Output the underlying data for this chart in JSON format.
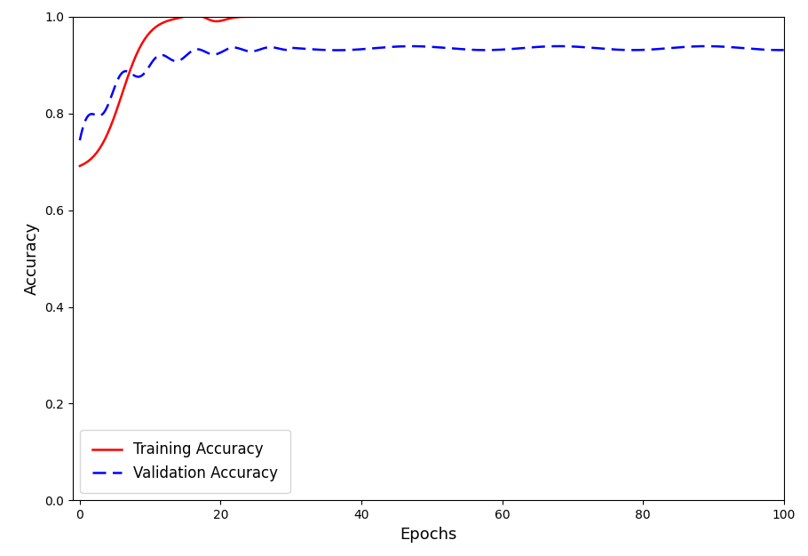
{
  "title": "",
  "xlabel": "Epochs",
  "ylabel": "Accuracy",
  "xlim": [
    -1,
    100
  ],
  "ylim": [
    0.0,
    1.0
  ],
  "xticks": [
    0,
    20,
    40,
    60,
    80,
    100
  ],
  "yticks": [
    0.0,
    0.2,
    0.4,
    0.6,
    0.8,
    1.0
  ],
  "train_color": "#ff0000",
  "val_color": "#0000ff",
  "legend_labels": [
    "Training Accuracy",
    "Validation Accuracy"
  ],
  "figsize": [
    9.1,
    6.26
  ],
  "dpi": 100
}
